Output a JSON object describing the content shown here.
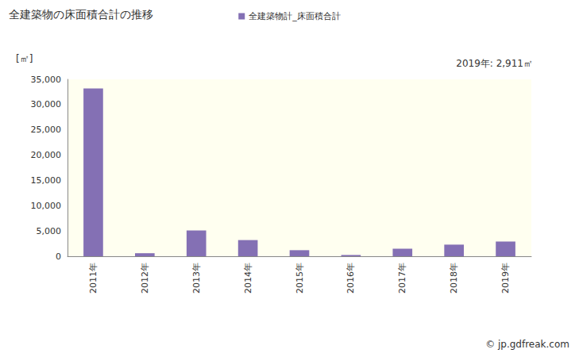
{
  "chart_data": {
    "type": "bar",
    "title": "全建築物の床面積合計の推移",
    "y_label": "[㎡]",
    "annotations": [
      "2019年: 2,911㎡",
      "© jp.gdfreak.com"
    ],
    "categories": [
      "2011年",
      "2012年",
      "2013年",
      "2014年",
      "2015年",
      "2016年",
      "2017年",
      "2018年",
      "2019年"
    ],
    "series": [
      {
        "name": "全建築物計_床面積合計",
        "color": "#8470b4",
        "values": [
          33200,
          600,
          5100,
          3200,
          1200,
          250,
          1500,
          2300,
          2911
        ]
      }
    ],
    "ylim": [
      0,
      35000
    ],
    "yticks": [
      0,
      {
        "value": 5000,
        "label": "5,000"
      },
      {
        "value": 10000,
        "label": "10,000"
      },
      {
        "value": 15000,
        "label": "15,000"
      },
      {
        "value": 20000,
        "label": "20,000"
      },
      {
        "value": 25000,
        "label": "25,000"
      },
      {
        "value": 30000,
        "label": "30,000"
      },
      {
        "value": 35000,
        "label": "35,000"
      }
    ],
    "grid": false,
    "legend": "top"
  }
}
